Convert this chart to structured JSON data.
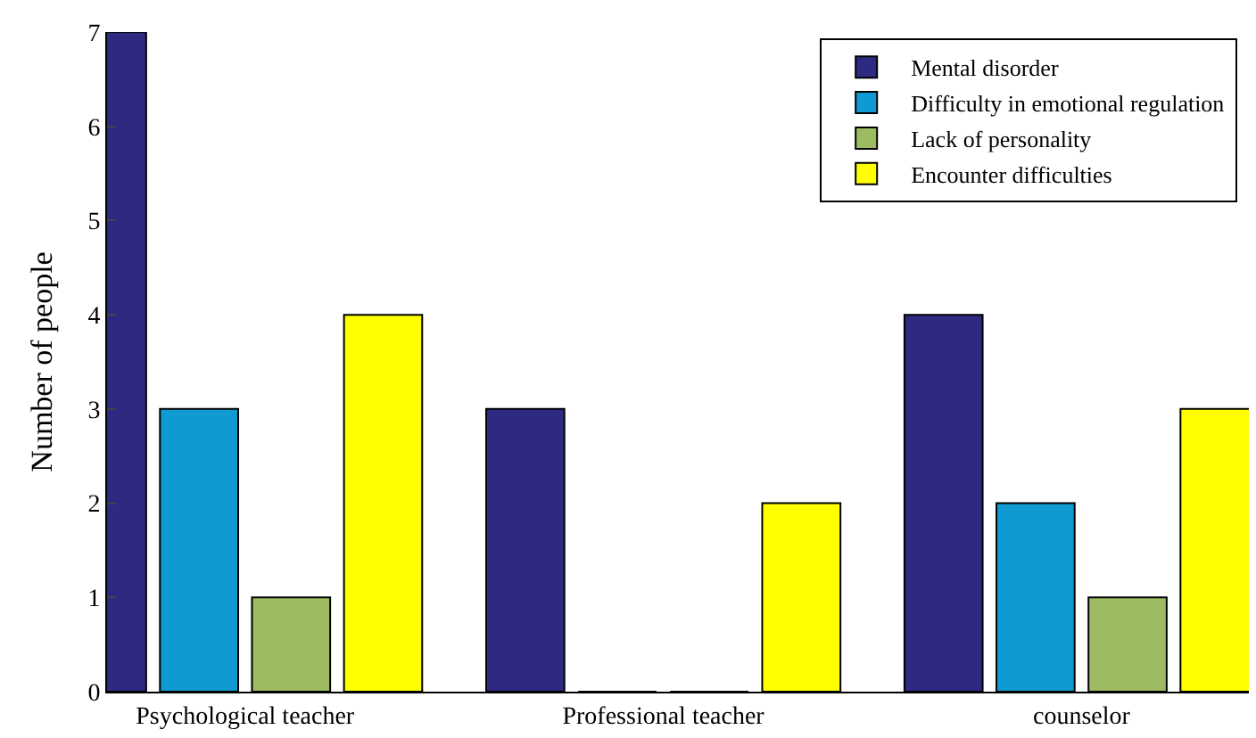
{
  "chart_data": {
    "type": "bar",
    "ylabel": "Number of people",
    "categories": [
      "Psychological teacher",
      "Professional teacher",
      "counselor"
    ],
    "series": [
      {
        "name": "Mental disorder",
        "color": "#2e2a82",
        "values": [
          7,
          3,
          4
        ]
      },
      {
        "name": "Difficulty in emotional regulation",
        "color": "#0f9bd2",
        "values": [
          3,
          0,
          2
        ]
      },
      {
        "name": "Lack of personality",
        "color": "#9dbb61",
        "values": [
          1,
          0,
          1
        ]
      },
      {
        "name": "Encounter difficulties",
        "color": "#ffff00",
        "values": [
          4,
          2,
          3
        ]
      }
    ],
    "ylim": [
      0,
      7
    ],
    "yticks": [
      0,
      1,
      2,
      3,
      4,
      5,
      6,
      7
    ],
    "legend": "top right",
    "grid": false
  }
}
